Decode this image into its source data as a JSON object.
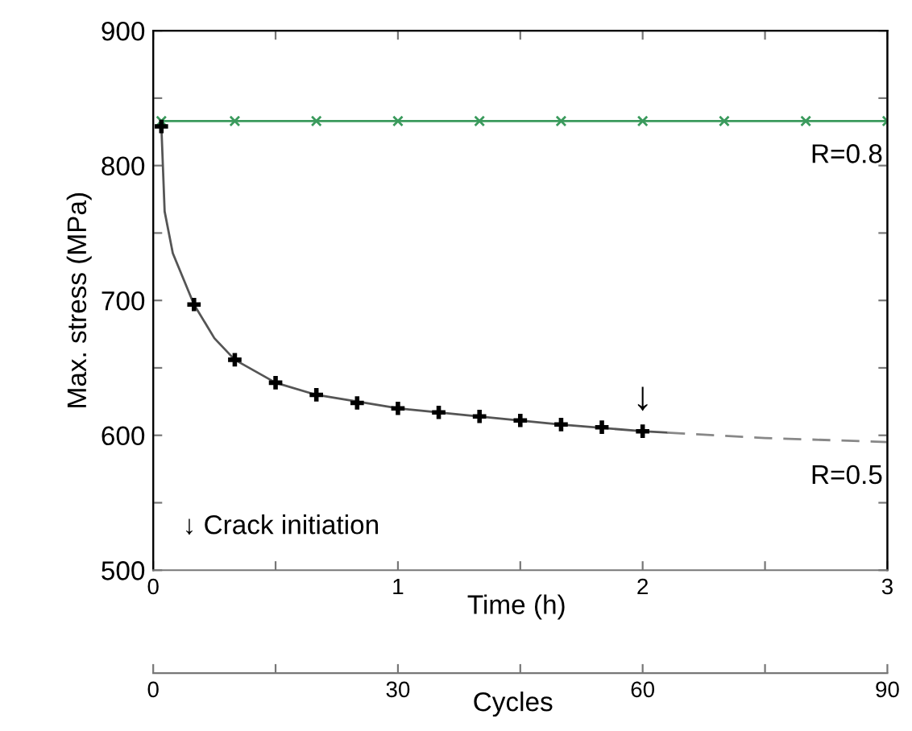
{
  "chart_data": {
    "type": "line",
    "ylabel": "Max. stress (MPa)",
    "xlabel": "Cycles",
    "x2label": "Time (h)",
    "xlim": [
      0,
      90
    ],
    "xticks": [
      0,
      {
        "value": 15,
        "label": null
      },
      30,
      {
        "value": 45,
        "label": null
      },
      60,
      {
        "value": 75,
        "label": null
      },
      90
    ],
    "x2lim": [
      0,
      3
    ],
    "x2ticks": [
      0,
      {
        "value": 0.5,
        "label": null
      },
      1,
      {
        "value": 1.5,
        "label": null
      },
      2,
      {
        "value": 2.5,
        "label": null
      },
      3
    ],
    "ylim": [
      500,
      900
    ],
    "yticks": [
      500,
      {
        "value": 550,
        "label": null
      },
      600,
      {
        "value": 650,
        "label": null
      },
      700,
      {
        "value": 750,
        "label": null
      },
      800,
      {
        "value": 850,
        "label": null
      },
      900
    ],
    "grid": false,
    "series": [
      {
        "name": "R=0.8",
        "color": "#3a9a5c",
        "marker": "cross",
        "line_style": "solid",
        "x": [
          1,
          10,
          20,
          30,
          40,
          50,
          60,
          70,
          80,
          90
        ],
        "values": [
          833,
          833,
          833,
          833,
          833,
          833,
          833,
          833,
          833,
          833
        ]
      },
      {
        "color": "#555555",
        "marker": "none",
        "line_style": "solid",
        "x": [
          1,
          1.4,
          2.4,
          5,
          7.5,
          10,
          15,
          20,
          30,
          40,
          50,
          60,
          63
        ],
        "values": [
          829,
          766,
          735,
          697,
          672,
          656,
          639,
          630,
          620,
          614,
          608,
          603,
          602
        ]
      },
      {
        "name": "R=0.5",
        "color": "#888888",
        "marker": "none",
        "line_style": "dashed",
        "x": [
          63,
          75,
          90
        ],
        "values": [
          602,
          598,
          595
        ]
      },
      {
        "type": "scatter",
        "color": "#000000",
        "marker": "plus",
        "x": [
          1,
          5,
          10,
          15,
          20,
          25,
          30,
          35,
          40,
          45,
          50,
          55,
          60
        ],
        "values": [
          829,
          697,
          656,
          639,
          630,
          624,
          620,
          617,
          614,
          611,
          608,
          606,
          603
        ]
      }
    ],
    "annotations": [
      {
        "text": "↓",
        "x": 60,
        "y": 603
      },
      "↓ Crack initiation"
    ]
  }
}
